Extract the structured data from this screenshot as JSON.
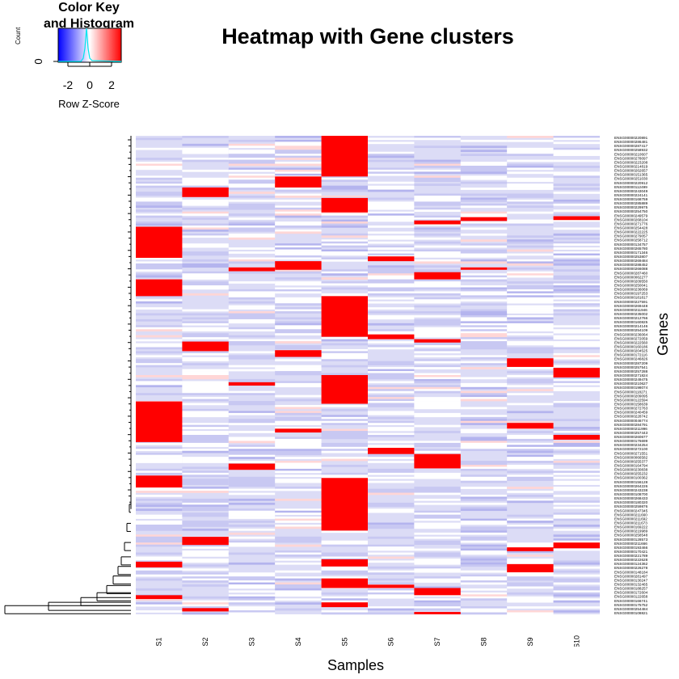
{
  "title": "Heatmap with Gene clusters",
  "color_key": {
    "title": "Color Key\nand Histogram",
    "xlabel": "Row Z-Score",
    "ylabel": "Count",
    "ytick": "0",
    "xticks": [
      "-2",
      "0",
      "2"
    ],
    "colors": {
      "low": "#0000ff",
      "mid": "#ffffff",
      "high": "#ff0000",
      "histogram": "#00e5ee"
    }
  },
  "chart_data": {
    "type": "heatmap",
    "title": "Heatmap with Gene clusters",
    "xlabel": "Samples",
    "ylabel": "Genes",
    "samples": [
      "S1",
      "S2",
      "S3",
      "S4",
      "S5",
      "S6",
      "S7",
      "S8",
      "S9",
      "S10"
    ],
    "gene_labels": [
      "ENSG00000220891",
      "ENSG00000286481",
      "ENSG00000287417",
      "ENSG00000258932",
      "ENSG00000210607",
      "ENSG00000278097",
      "ENSG00000223208",
      "ENSG00000214819",
      "ENSG00000262657",
      "ENSG00000151365",
      "ENSG00000251030",
      "ENSG00000220912",
      "ENSG00000112499",
      "ENSG00000243049",
      "ENSG00000224141",
      "ENSG00000168759",
      "ENSG00000285889",
      "ENSG00000229975",
      "ENSG00000254750",
      "ENSG00000249579",
      "ENSG00000268104",
      "ENSG00000271776",
      "ENSG00000254428",
      "ENSG00000222225",
      "ENSG00000279057",
      "ENSG00000258712",
      "ENSG00000134757",
      "ENSG00000265780",
      "ENSG00000171346",
      "ENSG00000253807",
      "ENSG00000269484",
      "ENSG00000288452",
      "ENSG00000266088",
      "ENSG00000287460",
      "ENSG00000062277",
      "ENSG00000209550",
      "ENSG00000250041",
      "ENSG00000236069",
      "ENSG00000197253",
      "ENSG00000181817",
      "ENSG00000227591",
      "ENSG00000269448",
      "ENSG00000211946",
      "ENSG00000235002",
      "ENSG00000212766",
      "ENSG00000160825",
      "ENSG00000214146",
      "ENSG00000254109",
      "ENSG00000236064",
      "ENSG00000272059",
      "ENSG00000222560",
      "ENSG00000160186",
      "ENSG00000204525",
      "ENSG00000172116",
      "ENSG00000246826",
      "ENSG00000287209",
      "ENSG00000257541",
      "ENSG00000257288",
      "ENSG00000271824",
      "ENSG00000249475",
      "ENSG00000210627",
      "ENSG00000198074",
      "ENSG00000118271",
      "ENSG00000209095",
      "ENSG00000122594",
      "ENSG00000158639",
      "ENSG00000272763",
      "ENSG00000240459",
      "ENSG00000228742",
      "ENSG00000046774",
      "ENSG00000284791",
      "ENSG00000211996",
      "ENSG00000257443",
      "ENSG00000260677",
      "ENSG00000176699",
      "ENSG00000234254",
      "ENSG00000272100",
      "ENSG00000271551",
      "ENSG00000066582",
      "ENSG00000255377",
      "ENSG00000164794",
      "ENSG00000230838",
      "ENSG00000255232",
      "ENSG00000100362",
      "ENSG00000156128",
      "ENSG00000264226",
      "ENSG00000243238",
      "ENSG00000108700",
      "ENSG00000268433",
      "ENSG00000180320",
      "ENSG00000259876",
      "ENSG00000247345",
      "ENSG00000211660",
      "ENSG00000211692",
      "ENSG00000211673",
      "ENSG00000169222",
      "ENSG00000219989",
      "ENSG00000258548",
      "ENSG00000128573",
      "ENSG00000211666",
      "ENSG00000193466",
      "ENSG00000170421",
      "ENSG00000221789",
      "ENSG00000222628",
      "ENSG00000124362",
      "ENSG00000226278",
      "ENSG00000148184",
      "ENSG00000281497",
      "ENSG00000130247",
      "ENSG00000132465",
      "ENSG00000188257",
      "ENSG00000172604",
      "ENSG00000122658",
      "ENSG00000166741",
      "ENSG00000175752",
      "ENSG00000254484",
      "ENSG00000108821"
    ],
    "high_blocks": [
      {
        "sample": 5,
        "from": 0.0,
        "to": 0.085
      },
      {
        "sample": 5,
        "from": 0.13,
        "to": 0.16
      },
      {
        "sample": 5,
        "from": 0.335,
        "to": 0.42
      },
      {
        "sample": 5,
        "from": 0.5,
        "to": 0.56
      },
      {
        "sample": 5,
        "from": 0.715,
        "to": 0.825
      },
      {
        "sample": 5,
        "from": 0.885,
        "to": 0.9
      },
      {
        "sample": 5,
        "from": 0.925,
        "to": 0.945
      },
      {
        "sample": 5,
        "from": 0.975,
        "to": 0.985
      },
      {
        "sample": 1,
        "from": 0.19,
        "to": 0.255
      },
      {
        "sample": 1,
        "from": 0.3,
        "to": 0.335
      },
      {
        "sample": 1,
        "from": 0.555,
        "to": 0.64
      },
      {
        "sample": 1,
        "from": 0.71,
        "to": 0.735
      },
      {
        "sample": 1,
        "from": 0.89,
        "to": 0.902
      },
      {
        "sample": 1,
        "from": 0.96,
        "to": 0.968
      },
      {
        "sample": 2,
        "from": 0.108,
        "to": 0.128
      },
      {
        "sample": 2,
        "from": 0.43,
        "to": 0.45
      },
      {
        "sample": 2,
        "from": 0.838,
        "to": 0.855
      },
      {
        "sample": 2,
        "from": 0.987,
        "to": 0.994
      },
      {
        "sample": 3,
        "from": 0.685,
        "to": 0.698
      },
      {
        "sample": 3,
        "from": 0.515,
        "to": 0.522
      },
      {
        "sample": 3,
        "from": 0.275,
        "to": 0.283
      },
      {
        "sample": 4,
        "from": 0.085,
        "to": 0.108
      },
      {
        "sample": 4,
        "from": 0.262,
        "to": 0.28
      },
      {
        "sample": 4,
        "from": 0.448,
        "to": 0.462
      },
      {
        "sample": 4,
        "from": 0.612,
        "to": 0.62
      },
      {
        "sample": 6,
        "from": 0.252,
        "to": 0.262
      },
      {
        "sample": 6,
        "from": 0.415,
        "to": 0.425
      },
      {
        "sample": 6,
        "from": 0.652,
        "to": 0.665
      },
      {
        "sample": 6,
        "from": 0.938,
        "to": 0.945
      },
      {
        "sample": 7,
        "from": 0.177,
        "to": 0.185
      },
      {
        "sample": 7,
        "from": 0.285,
        "to": 0.3
      },
      {
        "sample": 7,
        "from": 0.425,
        "to": 0.432
      },
      {
        "sample": 7,
        "from": 0.665,
        "to": 0.695
      },
      {
        "sample": 7,
        "from": 0.945,
        "to": 0.96
      },
      {
        "sample": 7,
        "from": 0.995,
        "to": 1.0
      },
      {
        "sample": 8,
        "from": 0.17,
        "to": 0.178
      },
      {
        "sample": 8,
        "from": 0.275,
        "to": 0.28
      },
      {
        "sample": 9,
        "from": 0.465,
        "to": 0.483
      },
      {
        "sample": 9,
        "from": 0.6,
        "to": 0.612
      },
      {
        "sample": 9,
        "from": 0.86,
        "to": 0.868
      },
      {
        "sample": 9,
        "from": 0.895,
        "to": 0.912
      },
      {
        "sample": 10,
        "from": 0.168,
        "to": 0.176
      },
      {
        "sample": 10,
        "from": 0.485,
        "to": 0.505
      },
      {
        "sample": 10,
        "from": 0.625,
        "to": 0.635
      },
      {
        "sample": 10,
        "from": 0.85,
        "to": 0.862
      }
    ],
    "value_range": [
      -3,
      3
    ],
    "grid": false
  }
}
